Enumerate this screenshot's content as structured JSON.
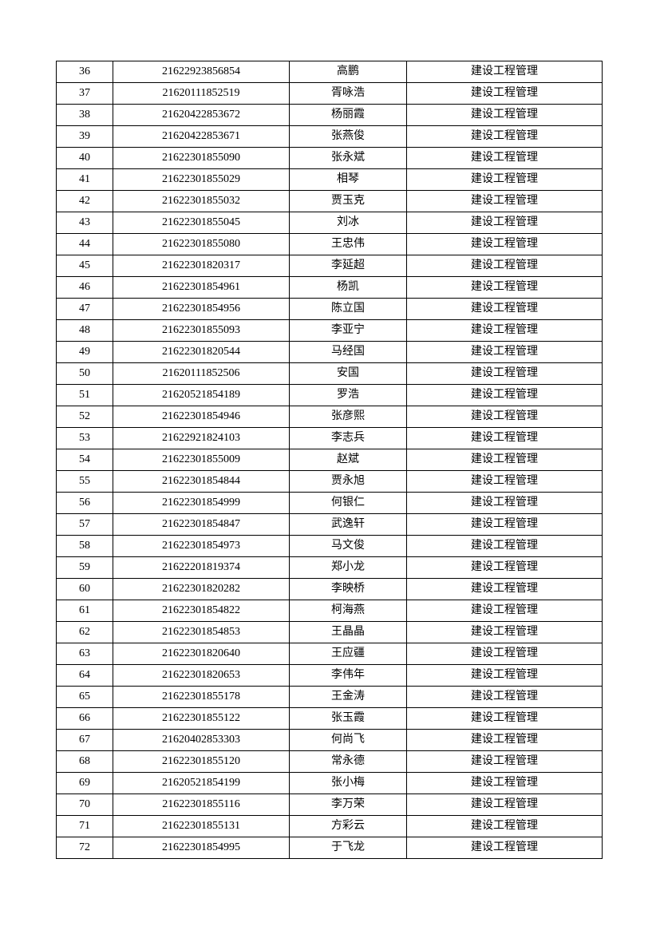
{
  "rows": [
    {
      "no": "36",
      "id": "21622923856854",
      "name": "高鹏",
      "major": "建设工程管理"
    },
    {
      "no": "37",
      "id": "21620111852519",
      "name": "胥咏浩",
      "major": "建设工程管理"
    },
    {
      "no": "38",
      "id": "21620422853672",
      "name": "杨丽霞",
      "major": "建设工程管理"
    },
    {
      "no": "39",
      "id": "21620422853671",
      "name": "张燕俊",
      "major": "建设工程管理"
    },
    {
      "no": "40",
      "id": "21622301855090",
      "name": "张永斌",
      "major": "建设工程管理"
    },
    {
      "no": "41",
      "id": "21622301855029",
      "name": "相琴",
      "major": "建设工程管理"
    },
    {
      "no": "42",
      "id": "21622301855032",
      "name": "贾玉克",
      "major": "建设工程管理"
    },
    {
      "no": "43",
      "id": "21622301855045",
      "name": "刘冰",
      "major": "建设工程管理"
    },
    {
      "no": "44",
      "id": "21622301855080",
      "name": "王忠伟",
      "major": "建设工程管理"
    },
    {
      "no": "45",
      "id": "21622301820317",
      "name": "李延超",
      "major": "建设工程管理"
    },
    {
      "no": "46",
      "id": "21622301854961",
      "name": "杨凯",
      "major": "建设工程管理"
    },
    {
      "no": "47",
      "id": "21622301854956",
      "name": "陈立国",
      "major": "建设工程管理"
    },
    {
      "no": "48",
      "id": "21622301855093",
      "name": "李亚宁",
      "major": "建设工程管理"
    },
    {
      "no": "49",
      "id": "21622301820544",
      "name": "马经国",
      "major": "建设工程管理"
    },
    {
      "no": "50",
      "id": "21620111852506",
      "name": "安国",
      "major": "建设工程管理"
    },
    {
      "no": "51",
      "id": "21620521854189",
      "name": "罗浩",
      "major": "建设工程管理"
    },
    {
      "no": "52",
      "id": "21622301854946",
      "name": "张彦熙",
      "major": "建设工程管理"
    },
    {
      "no": "53",
      "id": "21622921824103",
      "name": "李志兵",
      "major": "建设工程管理"
    },
    {
      "no": "54",
      "id": "21622301855009",
      "name": "赵斌",
      "major": "建设工程管理"
    },
    {
      "no": "55",
      "id": "21622301854844",
      "name": "贾永旭",
      "major": "建设工程管理"
    },
    {
      "no": "56",
      "id": "21622301854999",
      "name": "何银仁",
      "major": "建设工程管理"
    },
    {
      "no": "57",
      "id": "21622301854847",
      "name": "武逸轩",
      "major": "建设工程管理"
    },
    {
      "no": "58",
      "id": "21622301854973",
      "name": "马文俊",
      "major": "建设工程管理"
    },
    {
      "no": "59",
      "id": "21622201819374",
      "name": "郑小龙",
      "major": "建设工程管理"
    },
    {
      "no": "60",
      "id": "21622301820282",
      "name": "李映桥",
      "major": "建设工程管理"
    },
    {
      "no": "61",
      "id": "21622301854822",
      "name": "柯海燕",
      "major": "建设工程管理"
    },
    {
      "no": "62",
      "id": "21622301854853",
      "name": "王晶晶",
      "major": "建设工程管理"
    },
    {
      "no": "63",
      "id": "21622301820640",
      "name": "王应疆",
      "major": "建设工程管理"
    },
    {
      "no": "64",
      "id": "21622301820653",
      "name": "李伟年",
      "major": "建设工程管理"
    },
    {
      "no": "65",
      "id": "21622301855178",
      "name": "王金涛",
      "major": "建设工程管理"
    },
    {
      "no": "66",
      "id": "21622301855122",
      "name": "张玉霞",
      "major": "建设工程管理"
    },
    {
      "no": "67",
      "id": "21620402853303",
      "name": "何尚飞",
      "major": "建设工程管理"
    },
    {
      "no": "68",
      "id": "21622301855120",
      "name": "常永德",
      "major": "建设工程管理"
    },
    {
      "no": "69",
      "id": "21620521854199",
      "name": "张小梅",
      "major": "建设工程管理"
    },
    {
      "no": "70",
      "id": "21622301855116",
      "name": "李万荣",
      "major": "建设工程管理"
    },
    {
      "no": "71",
      "id": "21622301855131",
      "name": "方彩云",
      "major": "建设工程管理"
    },
    {
      "no": "72",
      "id": "21622301854995",
      "name": "于飞龙",
      "major": "建设工程管理"
    }
  ]
}
